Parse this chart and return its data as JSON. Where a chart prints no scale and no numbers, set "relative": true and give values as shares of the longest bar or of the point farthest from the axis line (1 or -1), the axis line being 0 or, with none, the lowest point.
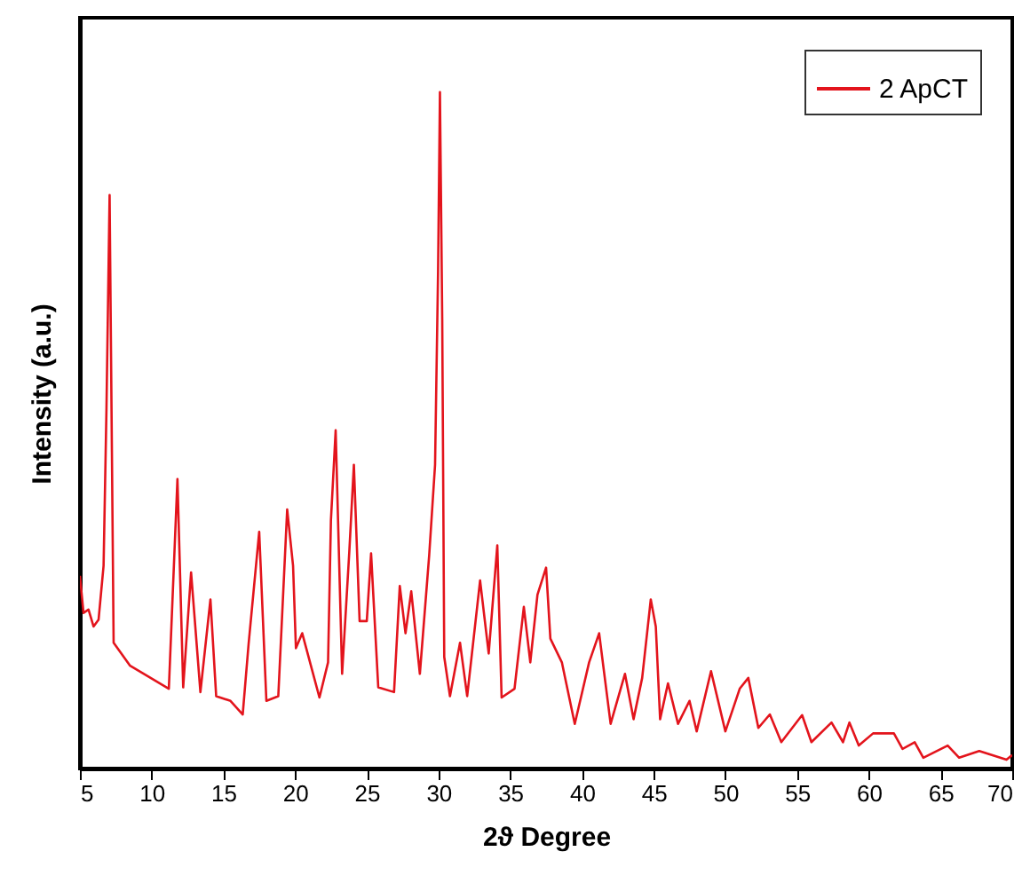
{
  "chart_data": {
    "type": "line",
    "xlabel": "2ϑ Degree",
    "ylabel": "Intensity (a.u.)",
    "relative": true,
    "legend": "top right",
    "grid": false,
    "xlim": [
      5,
      70
    ],
    "xticks": [
      5,
      10,
      15,
      20,
      25,
      30,
      35,
      40,
      45,
      50,
      55,
      60,
      65,
      70
    ],
    "x": [
      5,
      5.25,
      5.6,
      5.95,
      6.3,
      6.65,
      6.85,
      7.07,
      7.35,
      8.5,
      11.2,
      11.8,
      12.2,
      12.75,
      13.4,
      14.1,
      14.5,
      15.5,
      16.35,
      16.76,
      17.5,
      18.0,
      18.83,
      19.45,
      19.86,
      20.06,
      20.5,
      21.7,
      22.3,
      22.5,
      22.83,
      23.28,
      23.78,
      24.1,
      24.5,
      25.0,
      25.3,
      25.8,
      26.9,
      27.3,
      27.7,
      28.1,
      28.7,
      29.35,
      29.76,
      29.97,
      30.1,
      30.26,
      30.4,
      30.8,
      31.5,
      32.0,
      32.9,
      33.5,
      34.1,
      34.4,
      35.3,
      35.95,
      36.4,
      36.9,
      37.5,
      37.8,
      38.6,
      39.5,
      40.5,
      41.2,
      42.0,
      43.0,
      43.6,
      44.2,
      44.8,
      45.15,
      45.45,
      46.0,
      46.7,
      47.5,
      48.0,
      49.0,
      50.0,
      51.0,
      51.6,
      52.3,
      53.1,
      53.9,
      55.35,
      56.0,
      57.4,
      58.2,
      58.65,
      59.3,
      60.3,
      61.75,
      62.35,
      63.2,
      63.8,
      65.5,
      66.3,
      67.7,
      69.6,
      70
    ],
    "series": [
      {
        "name": "2 ApCT",
        "color": "#e3141c",
        "values": [
          0.285,
          0.23,
          0.235,
          0.21,
          0.22,
          0.3,
          0.53,
          0.848,
          0.186,
          0.152,
          0.118,
          0.428,
          0.12,
          0.29,
          0.113,
          0.25,
          0.107,
          0.1,
          0.08,
          0.184,
          0.35,
          0.1,
          0.107,
          0.383,
          0.3,
          0.178,
          0.2,
          0.105,
          0.157,
          0.367,
          0.5,
          0.14,
          0.32,
          0.449,
          0.218,
          0.218,
          0.318,
          0.12,
          0.113,
          0.27,
          0.2,
          0.262,
          0.14,
          0.315,
          0.449,
          0.735,
          1.0,
          0.664,
          0.165,
          0.107,
          0.186,
          0.107,
          0.278,
          0.17,
          0.33,
          0.105,
          0.118,
          0.239,
          0.157,
          0.257,
          0.297,
          0.192,
          0.157,
          0.066,
          0.157,
          0.2,
          0.066,
          0.14,
          0.073,
          0.134,
          0.25,
          0.21,
          0.073,
          0.126,
          0.066,
          0.1,
          0.055,
          0.144,
          0.055,
          0.118,
          0.134,
          0.06,
          0.08,
          0.039,
          0.079,
          0.039,
          0.068,
          0.039,
          0.068,
          0.034,
          0.052,
          0.052,
          0.029,
          0.039,
          0.016,
          0.034,
          0.016,
          0.026,
          0.013,
          0.02
        ]
      }
    ]
  }
}
